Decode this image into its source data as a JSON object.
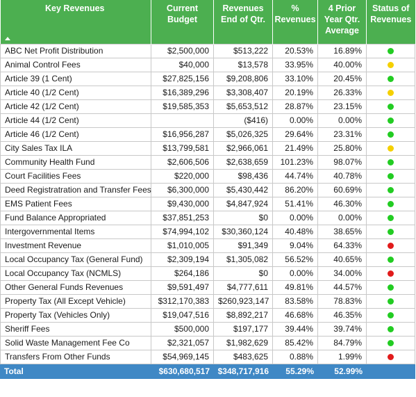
{
  "headers": {
    "key": "Key Revenues",
    "budget": [
      "Current",
      "Budget"
    ],
    "rev": [
      "Revenues",
      "End of Qtr."
    ],
    "pct": [
      "%",
      "Revenues"
    ],
    "prior": [
      "4 Prior",
      "Year Qtr.",
      "Average"
    ],
    "status": [
      "Status of",
      "Revenues"
    ]
  },
  "status_colors": {
    "green": "#22cc22",
    "yellow": "#f5d000",
    "red": "#e11b1b"
  },
  "rows": [
    {
      "name": "ABC Net Profit Distribution",
      "budget": "$2,500,000",
      "rev": "$513,222",
      "pct": "20.53%",
      "prior": "16.89%",
      "status": "green"
    },
    {
      "name": "Animal Control Fees",
      "budget": "$40,000",
      "rev": "$13,578",
      "pct": "33.95%",
      "prior": "40.00%",
      "status": "yellow"
    },
    {
      "name": "Article 39 (1 Cent)",
      "budget": "$27,825,156",
      "rev": "$9,208,806",
      "pct": "33.10%",
      "prior": "20.45%",
      "status": "green"
    },
    {
      "name": "Article 40 (1/2 Cent)",
      "budget": "$16,389,296",
      "rev": "$3,308,407",
      "pct": "20.19%",
      "prior": "26.33%",
      "status": "yellow"
    },
    {
      "name": "Article 42 (1/2 Cent)",
      "budget": "$19,585,353",
      "rev": "$5,653,512",
      "pct": "28.87%",
      "prior": "23.15%",
      "status": "green"
    },
    {
      "name": "Article 44 (1/2 Cent)",
      "budget": "",
      "rev": "($416)",
      "pct": "0.00%",
      "prior": "0.00%",
      "status": "green"
    },
    {
      "name": "Article 46 (1/2 Cent)",
      "budget": "$16,956,287",
      "rev": "$5,026,325",
      "pct": "29.64%",
      "prior": "23.31%",
      "status": "green"
    },
    {
      "name": "City Sales Tax ILA",
      "budget": "$13,799,581",
      "rev": "$2,966,061",
      "pct": "21.49%",
      "prior": "25.80%",
      "status": "yellow"
    },
    {
      "name": "Community Health Fund",
      "budget": "$2,606,506",
      "rev": "$2,638,659",
      "pct": "101.23%",
      "prior": "98.07%",
      "status": "green"
    },
    {
      "name": "Court Facilities Fees",
      "budget": "$220,000",
      "rev": "$98,436",
      "pct": "44.74%",
      "prior": "40.78%",
      "status": "green"
    },
    {
      "name": "Deed Registratration and Transfer Fees",
      "budget": "$6,300,000",
      "rev": "$5,430,442",
      "pct": "86.20%",
      "prior": "60.69%",
      "status": "green"
    },
    {
      "name": "EMS Patient Fees",
      "budget": "$9,430,000",
      "rev": "$4,847,924",
      "pct": "51.41%",
      "prior": "46.30%",
      "status": "green"
    },
    {
      "name": "Fund Balance Appropriated",
      "budget": "$37,851,253",
      "rev": "$0",
      "pct": "0.00%",
      "prior": "0.00%",
      "status": "green"
    },
    {
      "name": "Intergovernmental Items",
      "budget": "$74,994,102",
      "rev": "$30,360,124",
      "pct": "40.48%",
      "prior": "38.65%",
      "status": "green"
    },
    {
      "name": "Investment Revenue",
      "budget": "$1,010,005",
      "rev": "$91,349",
      "pct": "9.04%",
      "prior": "64.33%",
      "status": "red"
    },
    {
      "name": "Local Occupancy Tax (General Fund)",
      "budget": "$2,309,194",
      "rev": "$1,305,082",
      "pct": "56.52%",
      "prior": "40.65%",
      "status": "green"
    },
    {
      "name": "Local Occupancy Tax (NCMLS)",
      "budget": "$264,186",
      "rev": "$0",
      "pct": "0.00%",
      "prior": "34.00%",
      "status": "red"
    },
    {
      "name": "Other General Funds Revenues",
      "budget": "$9,591,497",
      "rev": "$4,777,611",
      "pct": "49.81%",
      "prior": "44.57%",
      "status": "green"
    },
    {
      "name": "Property Tax (All Except Vehicle)",
      "budget": "$312,170,383",
      "rev": "$260,923,147",
      "pct": "83.58%",
      "prior": "78.83%",
      "status": "green"
    },
    {
      "name": "Property Tax (Vehicles Only)",
      "budget": "$19,047,516",
      "rev": "$8,892,217",
      "pct": "46.68%",
      "prior": "46.35%",
      "status": "green"
    },
    {
      "name": "Sheriff Fees",
      "budget": "$500,000",
      "rev": "$197,177",
      "pct": "39.44%",
      "prior": "39.74%",
      "status": "green"
    },
    {
      "name": "Solid Waste Management Fee Co",
      "budget": "$2,321,057",
      "rev": "$1,982,629",
      "pct": "85.42%",
      "prior": "84.79%",
      "status": "green"
    },
    {
      "name": "Transfers From Other Funds",
      "budget": "$54,969,145",
      "rev": "$483,625",
      "pct": "0.88%",
      "prior": "1.99%",
      "status": "red"
    }
  ],
  "total": {
    "label": "Total",
    "budget": "$630,680,517",
    "rev": "$348,717,916",
    "pct": "55.29%",
    "prior": "52.99%"
  }
}
